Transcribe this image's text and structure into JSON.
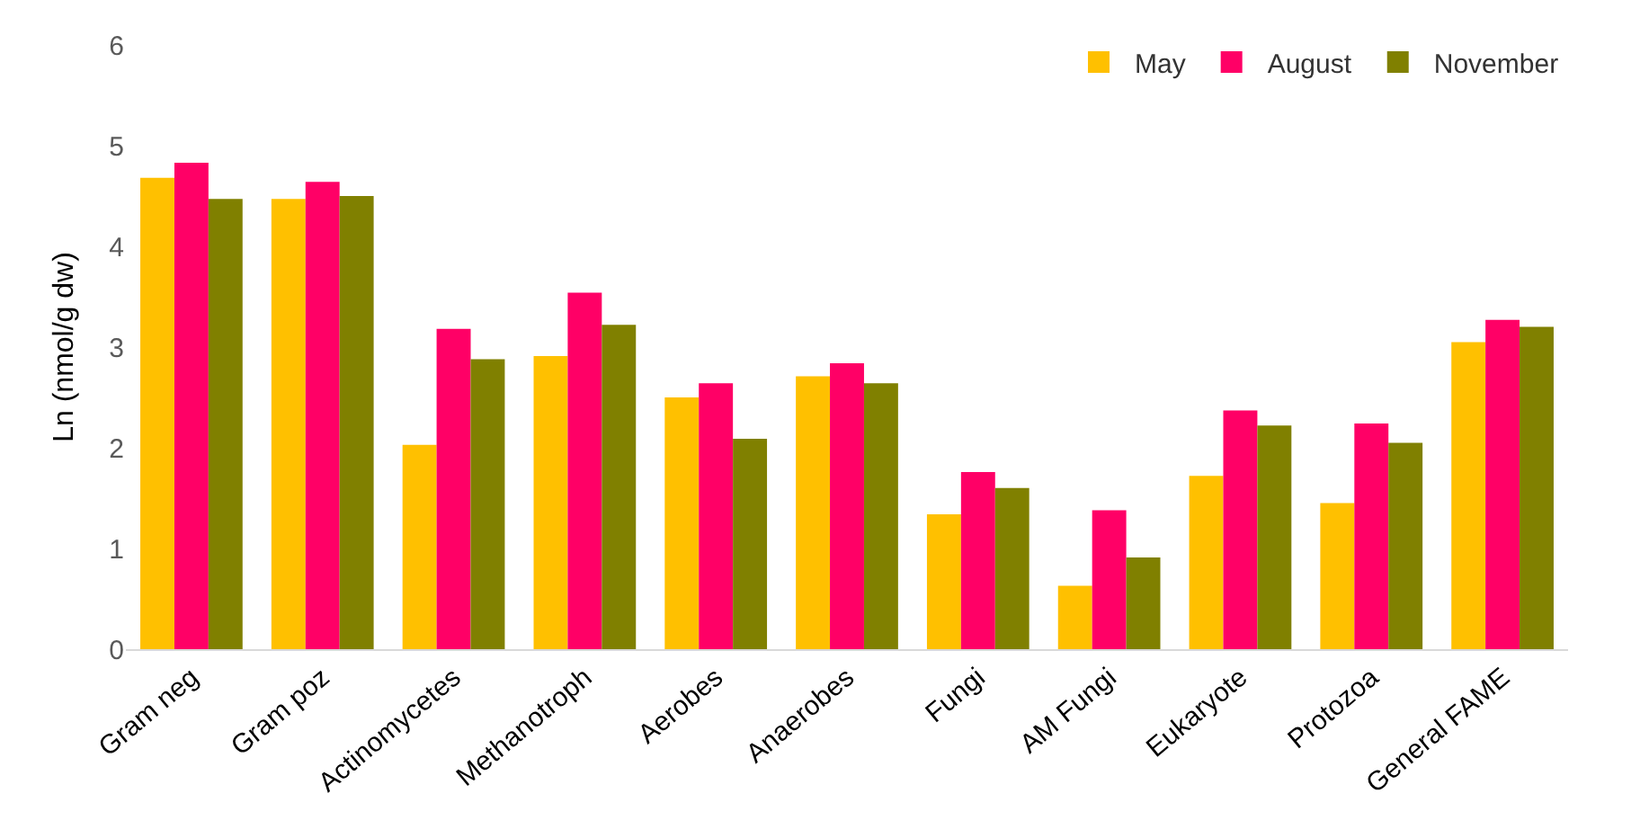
{
  "chart_data": {
    "type": "bar",
    "ylabel": "Ln (nmol/g dw)",
    "categories": [
      "Gram neg",
      "Gram poz",
      "Actinomycetes",
      "Methanotroph",
      "Aerobes",
      "Anaerobes",
      "Fungi",
      "AM Fungi",
      "Eukaryote",
      "Protozoa",
      "General FAME"
    ],
    "series": [
      {
        "name": "May",
        "color": "#ffc000",
        "values": [
          4.68,
          4.47,
          2.03,
          2.91,
          2.5,
          2.71,
          1.34,
          0.63,
          1.72,
          1.45,
          3.05
        ]
      },
      {
        "name": "August",
        "color": "#ff0066",
        "values": [
          4.83,
          4.64,
          3.18,
          3.54,
          2.64,
          2.84,
          1.76,
          1.38,
          2.37,
          2.24,
          3.27
        ]
      },
      {
        "name": "November",
        "color": "#808000",
        "values": [
          4.47,
          4.5,
          2.88,
          3.22,
          2.09,
          2.64,
          1.6,
          0.91,
          2.22,
          2.05,
          3.2
        ]
      }
    ],
    "ylim": [
      0,
      6
    ],
    "yticks": [
      0,
      1,
      2,
      3,
      4,
      5,
      6
    ],
    "grid": false,
    "legend": "top right"
  }
}
